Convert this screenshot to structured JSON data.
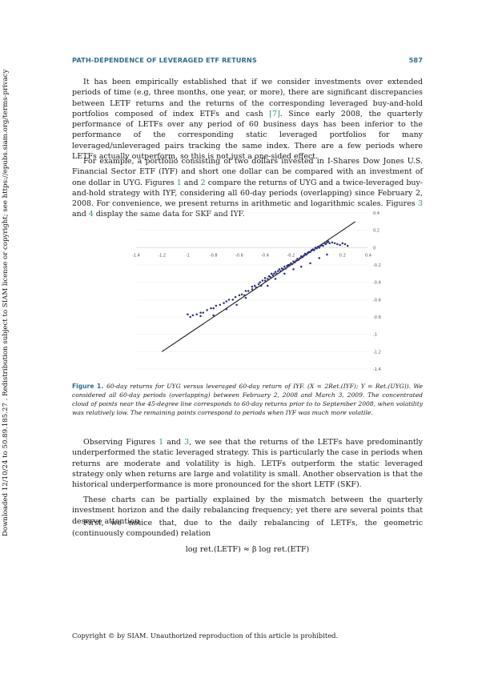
{
  "side_note": "Downloaded 12/10/24 to 50.89.185.27 . Redistribution subject to SIAM license or copyright; see https://epubs.siam.org/terms-privacy",
  "header": {
    "running_title": "PATH-DEPENDENCE OF LEVERAGED ETF RETURNS",
    "page_number": "587"
  },
  "paragraphs": {
    "p1": {
      "before_ref": "It has been empirically established that if we consider investments over extended periods of time (e.g, three months, one year, or more), there are significant discrepancies between LETF returns and the returns of the corresponding leveraged buy-and-hold portfolios composed of index ETFs and cash ",
      "ref": "[7]",
      "after_ref": ".  Since early 2008, the quarterly performance of LETFs over any period of 60 business days has been inferior to the performance of the corresponding static leveraged portfolios for many leveraged/unleveraged pairs tracking the same index. There are a few periods where LETFs actually outperform, so this is not just a one-sided effect."
    },
    "p2": {
      "a": "For example, a portfolio consisting of two dollars invested in I-Shares Dow Jones U.S. Financial Sector ETF (IYF) and short one dollar can be compared with an investment of one dollar in UYG. Figures ",
      "r1": "1",
      "b": " and ",
      "r2": "2",
      "c": " compare the returns of UYG and a twice-leveraged buy-and-hold strategy with IYF, considering all 60-day periods (overlapping) since February 2, 2008. For convenience, we present returns in arithmetic and logarithmic scales.  Figures ",
      "r3": "3",
      "d": " and ",
      "r4": "4",
      "e": " display the same data for SKF and IYF."
    },
    "p3": {
      "a": "Observing Figures ",
      "r1": "1",
      "b": " and ",
      "r2": "3",
      "c": ", we see that the returns of the LETFs have predominantly underperformed the static leveraged strategy.  This is particularly the case in periods when returns are moderate and volatility is high. LETFs outperform the static leveraged strategy only when returns are large and volatility is small. Another observation is that the historical underperformance is more pronounced for the short LETF (SKF)."
    },
    "p4": "These charts can be partially explained by the mismatch between the quarterly investment horizon and the daily rebalancing frequency; yet there are several points that deserve attention.",
    "p5": "First, we notice that, due to the daily rebalancing of LETFs, the geometric (continuously compounded) relation"
  },
  "equation": "log ret.(LETF) ≈  β  log ret.(ETF)",
  "figure": {
    "label": "Figure 1.",
    "caption": "60-day returns for UYG versus leveraged 60-day return of IYF. (X = 2Ret.(IYF); Y = Ret.(UYG)).  We considered all 60-day periods (overlapping) between February 2, 2008 and March 3, 2009. The concentrated cloud of points near the 45-degree line corresponds to 60-day returns prior to to September 2008, when volatility was relatively low.  The remaining points correspond to periods when IYF was much more volatile."
  },
  "chart_data": {
    "type": "scatter",
    "title": "",
    "xlabel": "",
    "ylabel": "",
    "xlim": [
      -1.4,
      0.4
    ],
    "ylim": [
      -1.4,
      0.4
    ],
    "x_ticks": [
      "-1.4",
      "-1.2",
      "-1",
      "-0.8",
      "-0.6",
      "-0.4",
      "-0.2",
      "0",
      "0.2",
      "0.4"
    ],
    "y_ticks": [
      "0.4",
      "0.2",
      "0",
      "-0.2",
      "-0.4",
      "-0.6",
      "-0.8",
      "-1",
      "-1.2",
      "-1.4"
    ],
    "grid": true,
    "reference_line": {
      "x": [
        -1.2,
        0.3
      ],
      "y": [
        -1.2,
        0.3
      ]
    },
    "series": [
      {
        "points": [
          [
            -1.0,
            -0.77
          ],
          [
            -0.98,
            -0.8
          ],
          [
            -0.96,
            -0.78
          ],
          [
            -0.93,
            -0.77
          ],
          [
            -0.9,
            -0.75
          ],
          [
            -0.88,
            -0.75
          ],
          [
            -0.85,
            -0.72
          ],
          [
            -0.82,
            -0.7
          ],
          [
            -0.8,
            -0.7
          ],
          [
            -0.78,
            -0.67
          ],
          [
            -0.75,
            -0.66
          ],
          [
            -0.72,
            -0.64
          ],
          [
            -0.7,
            -0.62
          ],
          [
            -0.68,
            -0.6
          ],
          [
            -0.65,
            -0.6
          ],
          [
            -0.63,
            -0.57
          ],
          [
            -0.6,
            -0.55
          ],
          [
            -0.58,
            -0.54
          ],
          [
            -0.56,
            -0.55
          ],
          [
            -0.55,
            -0.5
          ],
          [
            -0.53,
            -0.5
          ],
          [
            -0.5,
            -0.48
          ],
          [
            -0.5,
            -0.45
          ],
          [
            -0.48,
            -0.44
          ],
          [
            -0.47,
            -0.46
          ],
          [
            -0.45,
            -0.42
          ],
          [
            -0.44,
            -0.4
          ],
          [
            -0.43,
            -0.44
          ],
          [
            -0.42,
            -0.38
          ],
          [
            -0.4,
            -0.38
          ],
          [
            -0.4,
            -0.35
          ],
          [
            -0.38,
            -0.36
          ],
          [
            -0.37,
            -0.33
          ],
          [
            -0.36,
            -0.34
          ],
          [
            -0.35,
            -0.3
          ],
          [
            -0.34,
            -0.32
          ],
          [
            -0.33,
            -0.3
          ],
          [
            -0.32,
            -0.28
          ],
          [
            -0.31,
            -0.3
          ],
          [
            -0.3,
            -0.27
          ],
          [
            -0.29,
            -0.25
          ],
          [
            -0.28,
            -0.27
          ],
          [
            -0.27,
            -0.24
          ],
          [
            -0.26,
            -0.25
          ],
          [
            -0.25,
            -0.22
          ],
          [
            -0.24,
            -0.24
          ],
          [
            -0.23,
            -0.21
          ],
          [
            -0.22,
            -0.2
          ],
          [
            -0.21,
            -0.2
          ],
          [
            -0.2,
            -0.18
          ],
          [
            -0.19,
            -0.19
          ],
          [
            -0.18,
            -0.16
          ],
          [
            -0.17,
            -0.17
          ],
          [
            -0.16,
            -0.15
          ],
          [
            -0.15,
            -0.13
          ],
          [
            -0.14,
            -0.14
          ],
          [
            -0.13,
            -0.12
          ],
          [
            -0.12,
            -0.1
          ],
          [
            -0.11,
            -0.11
          ],
          [
            -0.1,
            -0.09
          ],
          [
            -0.09,
            -0.07
          ],
          [
            -0.08,
            -0.08
          ],
          [
            -0.07,
            -0.06
          ],
          [
            -0.06,
            -0.05
          ],
          [
            -0.05,
            -0.05
          ],
          [
            -0.04,
            -0.03
          ],
          [
            -0.03,
            -0.02
          ],
          [
            -0.02,
            -0.03
          ],
          [
            -0.01,
            0.0
          ],
          [
            0.0,
            -0.01
          ],
          [
            0.01,
            0.01
          ],
          [
            0.02,
            0.0
          ],
          [
            0.03,
            0.02
          ],
          [
            0.04,
            0.03
          ],
          [
            0.05,
            0.02
          ],
          [
            0.06,
            0.05
          ],
          [
            0.07,
            0.04
          ],
          [
            0.08,
            0.06
          ],
          [
            0.09,
            0.07
          ],
          [
            0.1,
            0.05
          ],
          [
            0.12,
            0.06
          ],
          [
            0.14,
            0.05
          ],
          [
            0.16,
            0.04
          ],
          [
            0.18,
            0.03
          ],
          [
            0.2,
            0.05
          ],
          [
            0.22,
            0.04
          ],
          [
            0.24,
            0.02
          ],
          [
            0.08,
            -0.08
          ],
          [
            0.02,
            -0.12
          ],
          [
            -0.05,
            -0.18
          ],
          [
            -0.12,
            -0.22
          ],
          [
            -0.18,
            -0.25
          ],
          [
            -0.25,
            -0.3
          ],
          [
            -0.32,
            -0.36
          ],
          [
            -0.38,
            -0.44
          ],
          [
            -0.55,
            -0.58
          ],
          [
            -0.62,
            -0.66
          ],
          [
            -0.7,
            -0.71
          ],
          [
            -0.8,
            -0.78
          ],
          [
            -0.9,
            -0.79
          ]
        ]
      }
    ]
  },
  "footer": "Copyright © by SIAM. Unauthorized reproduction of this article is prohibited.",
  "colors": {
    "header": "#2e6e8e",
    "link": "#2e8b8b",
    "point": "#2a2f7a",
    "line": "#1a1a1a"
  }
}
